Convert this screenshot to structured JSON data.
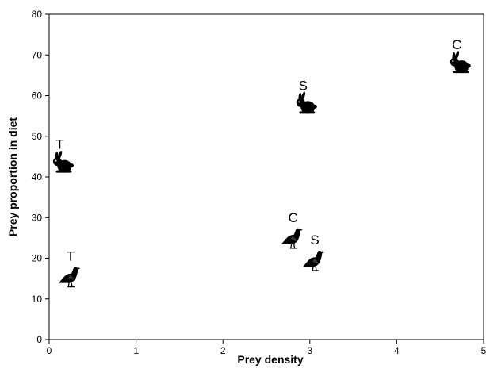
{
  "chart_data": {
    "type": "scatter",
    "title": "",
    "xlabel": "Prey density",
    "ylabel": "Prey proportion in diet",
    "xlim": [
      0,
      5
    ],
    "ylim": [
      0,
      80
    ],
    "x_ticks": [
      "0",
      "1",
      "2",
      "3",
      "4",
      "5"
    ],
    "y_ticks": [
      "0",
      "10",
      "20",
      "30",
      "40",
      "50",
      "60",
      "70",
      "80"
    ],
    "grid": false,
    "legend": "none",
    "points": [
      {
        "label": "T",
        "marker": "rabbit-icon",
        "x": 0.15,
        "y": 43
      },
      {
        "label": "S",
        "marker": "rabbit-icon",
        "x": 2.95,
        "y": 57.5
      },
      {
        "label": "C",
        "marker": "rabbit-icon",
        "x": 4.72,
        "y": 67.5
      },
      {
        "label": "T",
        "marker": "bird-icon",
        "x": 0.22,
        "y": 15.5
      },
      {
        "label": "C",
        "marker": "bird-icon",
        "x": 2.78,
        "y": 25
      },
      {
        "label": "S",
        "marker": "bird-icon",
        "x": 3.03,
        "y": 19.5
      }
    ]
  }
}
